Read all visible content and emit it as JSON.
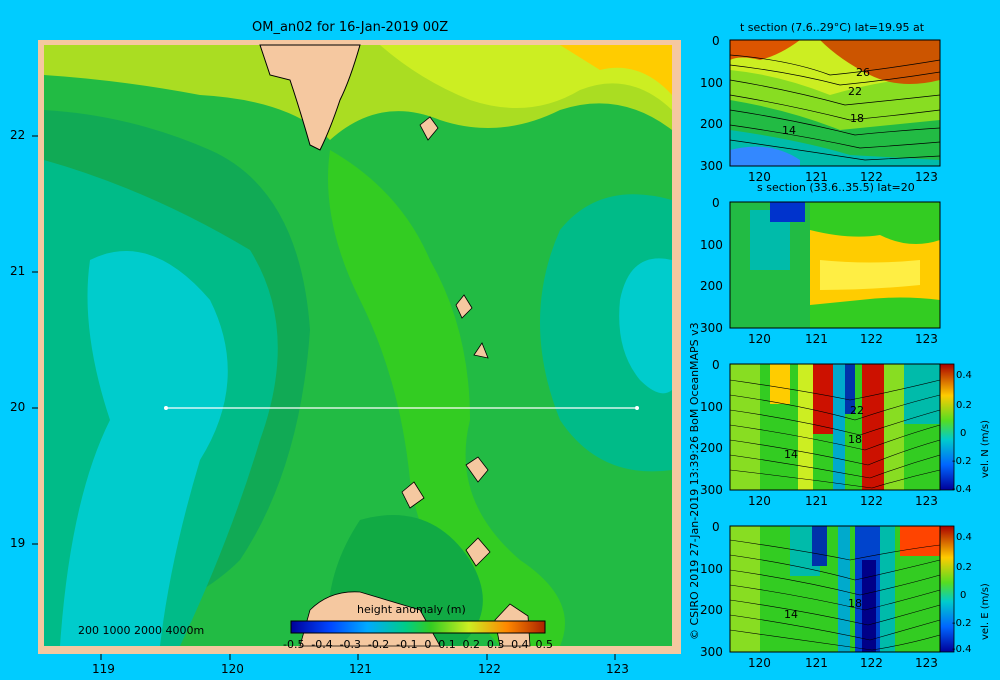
{
  "main_map": {
    "title": "OM_an02 for 16-Jan-2019 00Z",
    "x_ticks": [
      "119",
      "120",
      "121",
      "122",
      "123"
    ],
    "y_ticks": [
      "22",
      "21",
      "20",
      "19"
    ],
    "depth_legend": "200  1000  2000  4000m",
    "colorbar": {
      "label": "height anomaly  (m)",
      "ticks": [
        "-0.5",
        "-0.4",
        "-0.3",
        "-0.2",
        "-0.1",
        "0",
        "0.1",
        "0.2",
        "0.3",
        "0.4",
        "0.5"
      ]
    },
    "section_line": {
      "lat": 20,
      "lon_start": 119.5,
      "lon_end": 123.2
    }
  },
  "credit": "© CSIRO 2019   27-Jan-2019 13:39:26 BoM OceanMAPS v3",
  "panels": [
    {
      "title": "t section (7.6..29°C) lat=19.95 at",
      "y_ticks": [
        "0",
        "100",
        "200",
        "300"
      ],
      "x_ticks": [
        "120",
        "121",
        "122",
        "123"
      ],
      "contour_labels": [
        "26",
        "22",
        "18",
        "14"
      ]
    },
    {
      "title": "s section (33.6..35.5) lat=20",
      "y_ticks": [
        "0",
        "100",
        "200",
        "300"
      ],
      "x_ticks": [
        "120",
        "121",
        "122",
        "123"
      ],
      "contour_labels": []
    },
    {
      "title": "",
      "y_ticks": [
        "0",
        "100",
        "200",
        "300"
      ],
      "x_ticks": [
        "120",
        "121",
        "122",
        "123"
      ],
      "contour_labels": [
        "22",
        "18",
        "14"
      ],
      "colorbar": {
        "label": "vel. N  (m/s)",
        "ticks": [
          "0.4",
          "0.2",
          "0",
          "-0.2",
          "-0.4"
        ]
      }
    },
    {
      "title": "",
      "y_ticks": [
        "0",
        "100",
        "200",
        "300"
      ],
      "x_ticks": [
        "120",
        "121",
        "122",
        "123"
      ],
      "contour_labels": [
        "18",
        "14"
      ],
      "colorbar": {
        "label": "vel. E  (m/s)",
        "ticks": [
          "0.4",
          "0.2",
          "0",
          "-0.2",
          "-0.4"
        ]
      }
    }
  ],
  "colors": {
    "background": "#00ccff",
    "land": "#f5c8a0",
    "ocean_low": "#00cccc",
    "ocean_mid": "#22bb44",
    "ocean_high": "#ccee22"
  }
}
